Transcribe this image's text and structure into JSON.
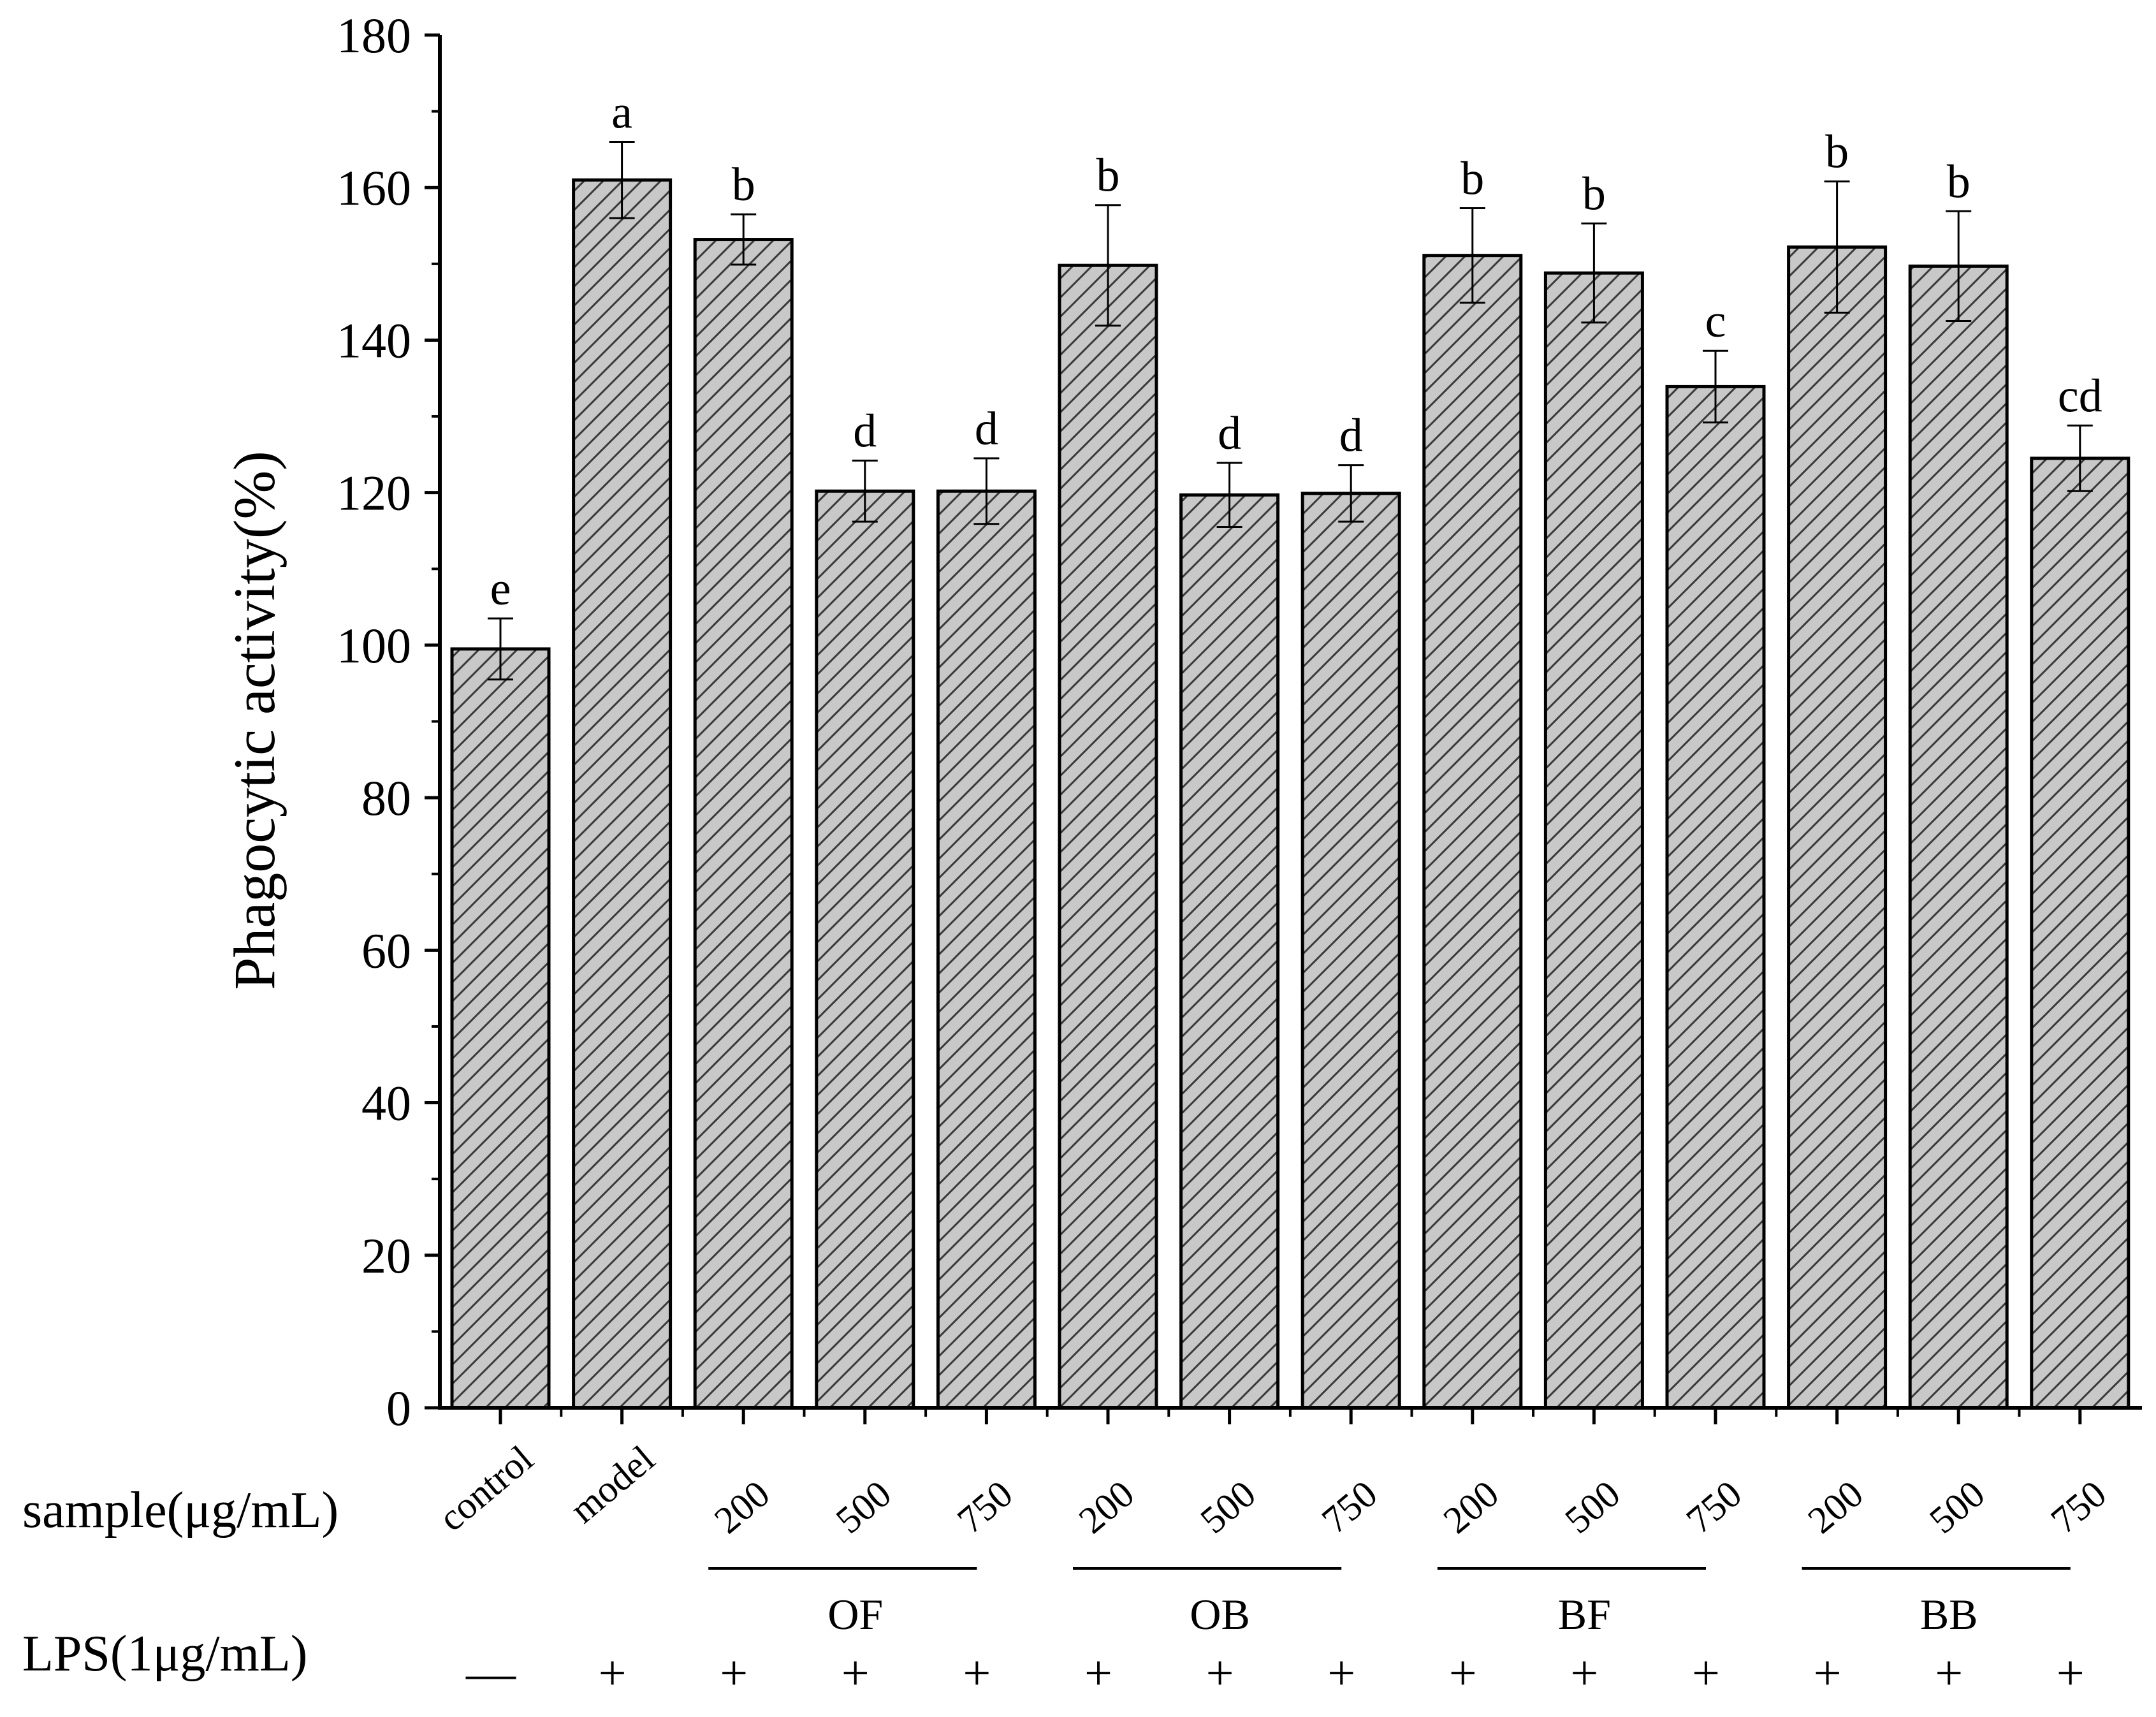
{
  "chart_data": {
    "type": "bar",
    "title": "",
    "xlabel": "",
    "ylabel": "Phagocytic activity(%)",
    "ylim": [
      0,
      180
    ],
    "y_ticks": [
      0,
      20,
      40,
      60,
      80,
      100,
      120,
      140,
      160,
      180
    ],
    "grid": false,
    "bar_fill": "#c8c8c8",
    "hatch_color": "#3a3a3a",
    "bars": [
      {
        "category": "control",
        "value": 99.5,
        "error": 4.0,
        "sig": "e"
      },
      {
        "category": "model",
        "value": 161.0,
        "error": 5.0,
        "sig": "a"
      },
      {
        "category": "200",
        "group": "OF",
        "value": 153.2,
        "error": 3.3,
        "sig": "b"
      },
      {
        "category": "500",
        "group": "OF",
        "value": 120.2,
        "error": 4.0,
        "sig": "d"
      },
      {
        "category": "750",
        "group": "OF",
        "value": 120.2,
        "error": 4.3,
        "sig": "d"
      },
      {
        "category": "200",
        "group": "OB",
        "value": 149.8,
        "error": 7.9,
        "sig": "b"
      },
      {
        "category": "500",
        "group": "OB",
        "value": 119.7,
        "error": 4.2,
        "sig": "d"
      },
      {
        "category": "750",
        "group": "OB",
        "value": 119.9,
        "error": 3.7,
        "sig": "d"
      },
      {
        "category": "200",
        "group": "BF",
        "value": 151.1,
        "error": 6.2,
        "sig": "b"
      },
      {
        "category": "500",
        "group": "BF",
        "value": 148.8,
        "error": 6.5,
        "sig": "b"
      },
      {
        "category": "750",
        "group": "BF",
        "value": 133.9,
        "error": 4.7,
        "sig": "c"
      },
      {
        "category": "200",
        "group": "BB",
        "value": 152.2,
        "error": 8.6,
        "sig": "b"
      },
      {
        "category": "500",
        "group": "BB",
        "value": 149.7,
        "error": 7.2,
        "sig": "b"
      },
      {
        "category": "750",
        "group": "BB",
        "value": 124.5,
        "error": 4.3,
        "sig": "cd"
      }
    ],
    "groups": [
      {
        "name": "OF",
        "start": 2,
        "end": 4
      },
      {
        "name": "OB",
        "start": 5,
        "end": 7
      },
      {
        "name": "BF",
        "start": 8,
        "end": 10
      },
      {
        "name": "BB",
        "start": 11,
        "end": 13
      }
    ],
    "row_labels": {
      "sample": "sample(μg/mL)",
      "lps": "LPS(1μg/mL)"
    },
    "lps": [
      "—",
      "+",
      "+",
      "+",
      "+",
      "+",
      "+",
      "+",
      "+",
      "+",
      "+",
      "+",
      "+",
      "+"
    ]
  }
}
